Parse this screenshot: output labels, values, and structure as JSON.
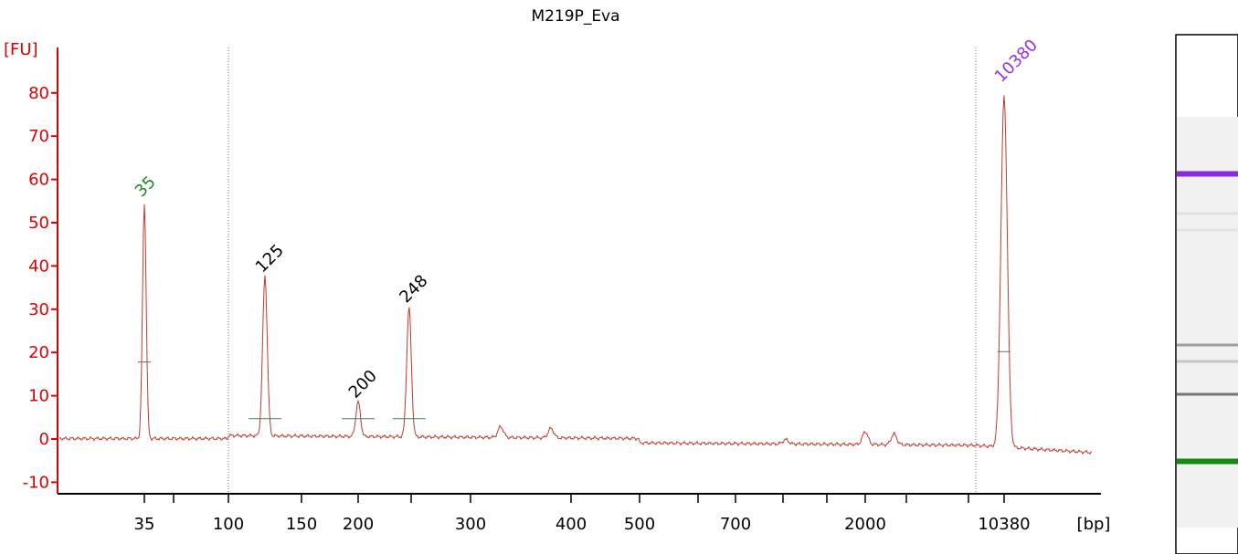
{
  "chart_data": {
    "type": "line",
    "title": "M219P_Eva",
    "ylabel": "[FU]",
    "xlabel": "[bp]",
    "ylim": [
      -12,
      87
    ],
    "yticks": [
      -10,
      0,
      10,
      20,
      30,
      40,
      50,
      60,
      70,
      80
    ],
    "xticks": [
      {
        "label": "35",
        "bp": 35
      },
      {
        "label": "",
        "bp": 50
      },
      {
        "label": "100",
        "bp": 100
      },
      {
        "label": "150",
        "bp": 150
      },
      {
        "label": "200",
        "bp": 200
      },
      {
        "label": "",
        "bp": 250
      },
      {
        "label": "300",
        "bp": 300
      },
      {
        "label": "400",
        "bp": 400
      },
      {
        "label": "500",
        "bp": 500
      },
      {
        "label": "",
        "bp": 600
      },
      {
        "label": "700",
        "bp": 700
      },
      {
        "label": "",
        "bp": 1000
      },
      {
        "label": "",
        "bp": 1500
      },
      {
        "label": "2000",
        "bp": 2000
      },
      {
        "label": "",
        "bp": 3000
      },
      {
        "label": "",
        "bp": 7000
      },
      {
        "label": "10380",
        "bp": 10380
      }
    ],
    "peaks": [
      {
        "label": "35",
        "bp": 35,
        "height": 54.5,
        "color": "#1a8a1a"
      },
      {
        "label": "125",
        "bp": 125,
        "height": 37,
        "color": "#000000"
      },
      {
        "label": "200",
        "bp": 200,
        "height": 8,
        "color": "#000000"
      },
      {
        "label": "248",
        "bp": 248,
        "height": 30,
        "color": "#000000"
      },
      {
        "label": "10380",
        "bp": 10380,
        "height": 81,
        "color": "#9b30e8"
      }
    ],
    "minor_peaks": [
      {
        "bp": 330,
        "height": 2.5
      },
      {
        "bp": 380,
        "height": 2.2
      },
      {
        "bp": 1030,
        "height": 1
      },
      {
        "bp": 2000,
        "height": 3
      },
      {
        "bp": 2700,
        "height": 2.5
      }
    ],
    "region_markers_bp": [
      85,
      8500
    ],
    "gel_bands": [
      {
        "position": 0.21,
        "color": "#8a2be2",
        "strength": 1.0
      },
      {
        "position": 0.31,
        "color": "#bdbdbd",
        "strength": 0.3
      },
      {
        "position": 0.35,
        "color": "#c8c8c8",
        "strength": 0.25
      },
      {
        "position": 0.63,
        "color": "#7a7a7a",
        "strength": 0.7
      },
      {
        "position": 0.67,
        "color": "#9a9a9a",
        "strength": 0.5
      },
      {
        "position": 0.75,
        "color": "#555555",
        "strength": 0.8
      },
      {
        "position": 0.91,
        "color": "#138a13",
        "strength": 1.0
      }
    ],
    "grid": false,
    "legend": "none"
  },
  "colors": {
    "axis": "#e00000",
    "trace": "#c0392b",
    "marker_line": "#707070"
  }
}
